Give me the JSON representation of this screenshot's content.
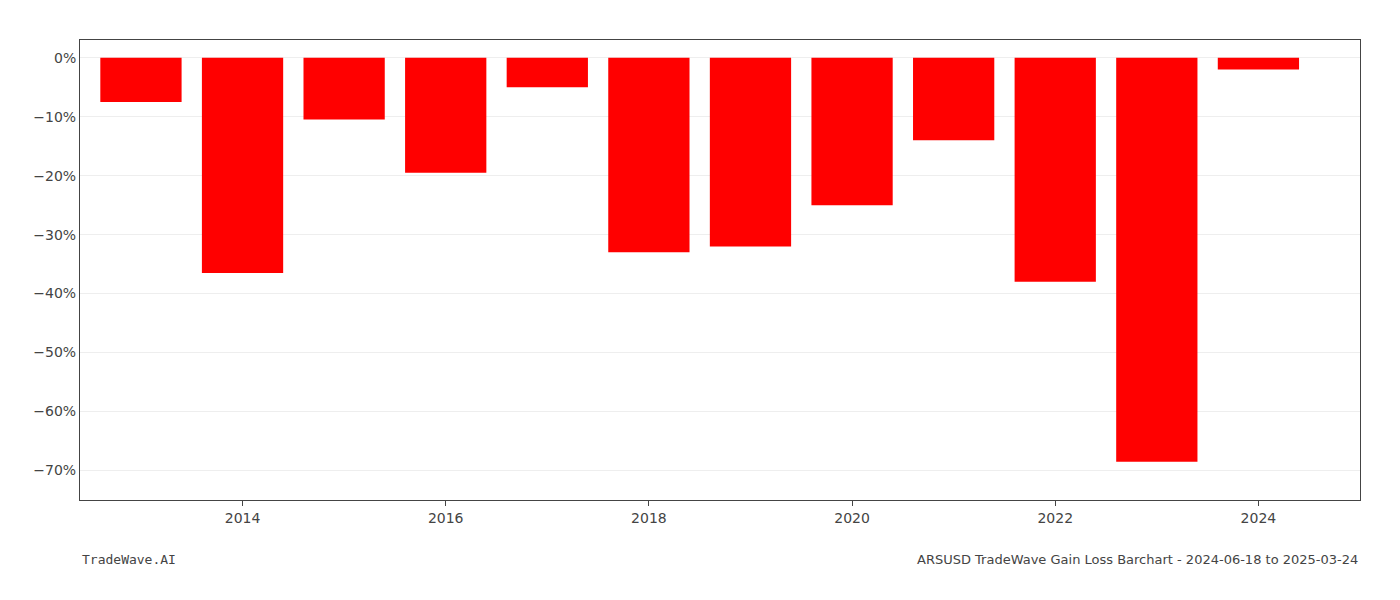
{
  "chart_data": {
    "type": "bar",
    "x": [
      2013,
      2014,
      2015,
      2016,
      2017,
      2018,
      2019,
      2020,
      2021,
      2022,
      2023,
      2024
    ],
    "values": [
      -7.5,
      -36.5,
      -10.5,
      -19.5,
      -5.0,
      -33.0,
      -32.0,
      -25.0,
      -14.0,
      -38.0,
      -68.5,
      -2.0
    ],
    "color": "#ff0000",
    "xlim": [
      2012.4,
      2025.0
    ],
    "xticks": [
      2014,
      2016,
      2018,
      2020,
      2022,
      2024
    ],
    "ylim": [
      -75,
      3
    ],
    "yticks": [
      {
        "value": 0,
        "label": "0%"
      },
      {
        "value": -10,
        "label": "−10%"
      },
      {
        "value": -20,
        "label": "−20%"
      },
      {
        "value": -30,
        "label": "−30%"
      },
      {
        "value": -40,
        "label": "−40%"
      },
      {
        "value": -50,
        "label": "−50%"
      },
      {
        "value": -60,
        "label": "−60%"
      },
      {
        "value": -70,
        "label": "−70%"
      }
    ],
    "grid": true,
    "annotations": [
      "TradeWave.AI",
      "ARSUSD TradeWave Gain Loss Barchart - 2024-06-18 to 2025-03-24"
    ]
  }
}
